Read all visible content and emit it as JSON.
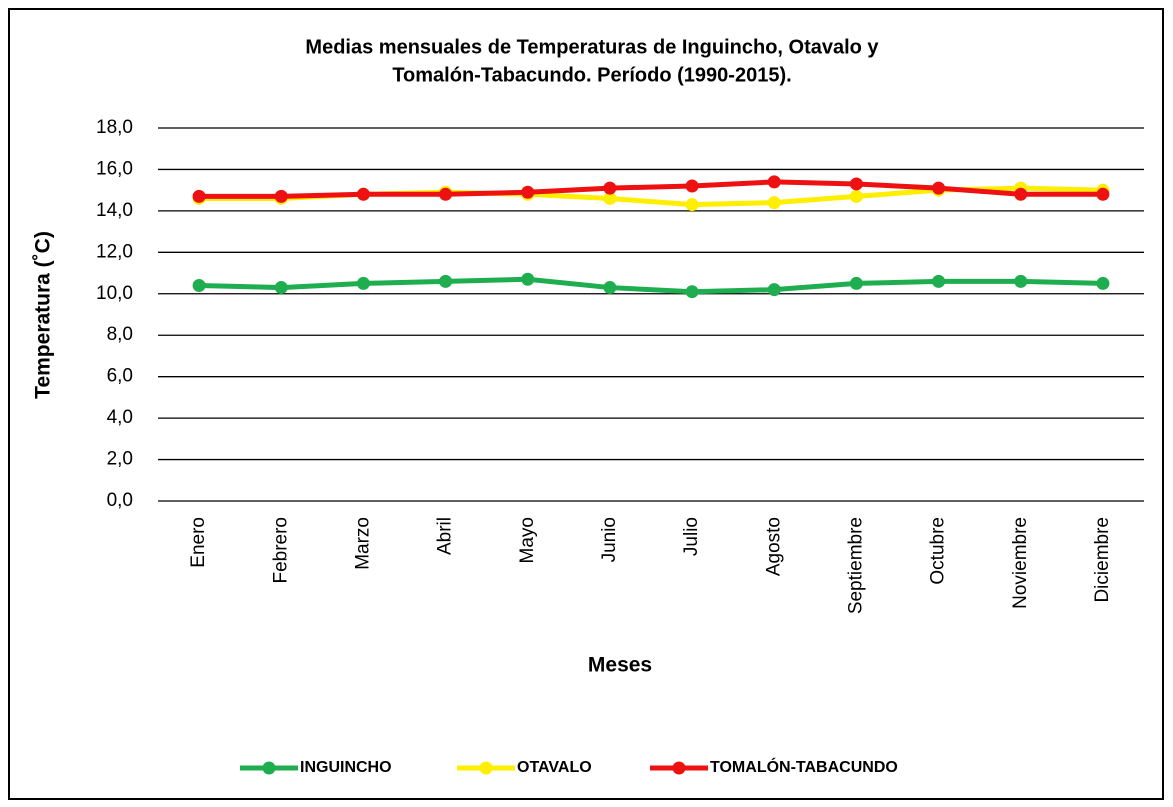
{
  "chart_data": {
    "type": "line",
    "title": [
      "Medias mensuales de Temperaturas de Inguincho, Otavalo y",
      "Tomalón-Tabacundo. Período (1990-2015)."
    ],
    "x_label": "Meses",
    "y_label": "Temperatura (˚C)",
    "categories": [
      "Enero",
      "Febrero",
      "Marzo",
      "Abril",
      "Mayo",
      "Junio",
      "Julio",
      "Agosto",
      "Septiembre",
      "Octubre",
      "Noviembre",
      "Diciembre"
    ],
    "series": [
      {
        "name": "INGUINCHO",
        "color": "#1fae4f",
        "values": [
          10.4,
          10.3,
          10.5,
          10.6,
          10.7,
          10.3,
          10.1,
          10.2,
          10.5,
          10.6,
          10.6,
          10.5
        ]
      },
      {
        "name": "OTAVALO",
        "color": "#ffee00",
        "values": [
          14.6,
          14.6,
          14.8,
          14.9,
          14.8,
          14.6,
          14.3,
          14.4,
          14.7,
          15.0,
          15.1,
          15.0
        ]
      },
      {
        "name": "TOMALÓN-TABACUNDO",
        "color": "#ee1111",
        "values": [
          14.7,
          14.7,
          14.8,
          14.8,
          14.9,
          15.1,
          15.2,
          15.4,
          15.3,
          15.1,
          14.8,
          14.8
        ]
      }
    ],
    "ylim": [
      0,
      18
    ],
    "yticks": [
      {
        "value": 0,
        "label": "0,0"
      },
      {
        "value": 2,
        "label": "2,0"
      },
      {
        "value": 4,
        "label": "4,0"
      },
      {
        "value": 6,
        "label": "6,0"
      },
      {
        "value": 8,
        "label": "8,0"
      },
      {
        "value": 10,
        "label": "10,0"
      },
      {
        "value": 12,
        "label": "12,0"
      },
      {
        "value": 14,
        "label": "14,0"
      },
      {
        "value": 16,
        "label": "16,0"
      },
      {
        "value": 18,
        "label": "18,0"
      }
    ],
    "grid": true,
    "legend": "bottom"
  }
}
